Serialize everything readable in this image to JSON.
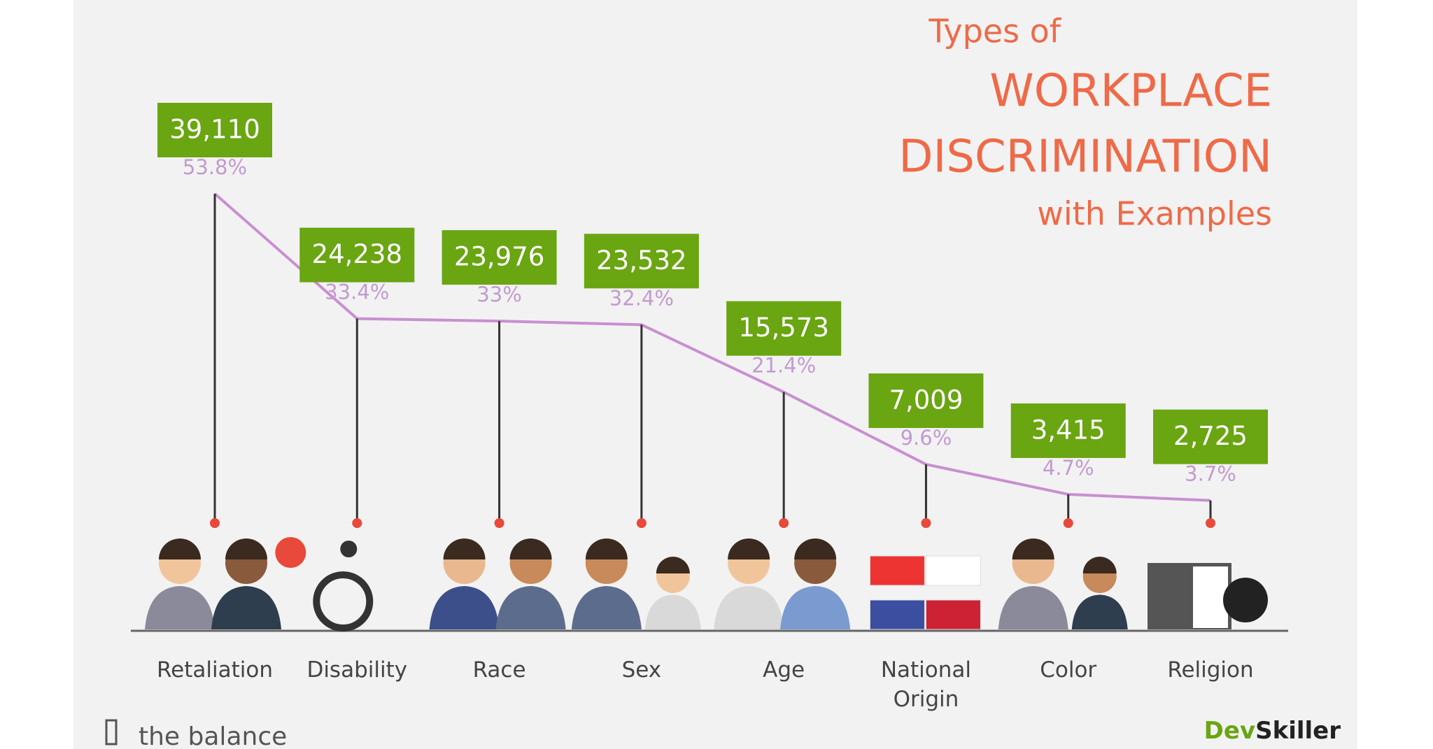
{
  "chart_data": {
    "type": "line",
    "title": [
      "Types of",
      "WORKPLACE",
      "DISCRIMINATION",
      "with Examples"
    ],
    "categories": [
      "Retaliation",
      "Disability",
      "Race",
      "Sex",
      "Age",
      "National Origin",
      "Color",
      "Religion"
    ],
    "series": [
      {
        "color": "#6aa512",
        "values": [
          39110,
          24238,
          23976,
          23532,
          15573,
          7009,
          3415,
          2725
        ],
        "value_labels": [
          "39,110",
          "24,238",
          "23,976",
          "23,532",
          "15,573",
          "7,009",
          "3,415",
          "2,725"
        ]
      },
      {
        "color": "#c98fd1",
        "values": [
          53.8,
          33.4,
          33,
          32.4,
          21.4,
          9.6,
          4.7,
          3.7
        ],
        "value_labels": [
          "53.8%",
          "33.4%",
          "33%",
          "32.4%",
          "21.4%",
          "9.6%",
          "4.7%",
          "3.7%"
        ]
      }
    ],
    "source": "the balance",
    "brand": {
      "first": "Dev",
      "second": "Skiller"
    }
  }
}
